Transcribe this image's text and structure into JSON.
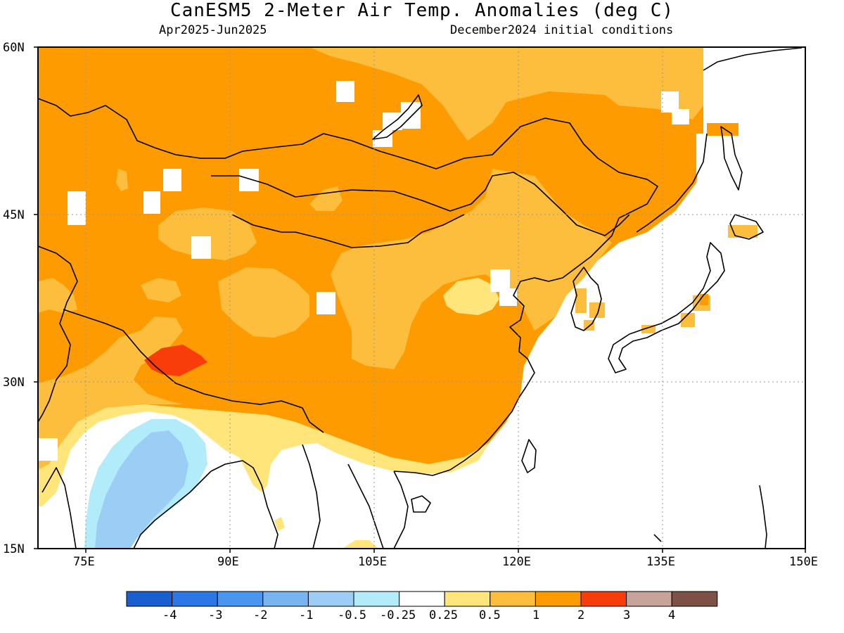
{
  "header": {
    "title": "CanESM5 2-Meter Air Temp. Anomalies (deg C)",
    "period": "Apr2025-Jun2025",
    "init": "December2024 initial conditions"
  },
  "map": {
    "lon_range": [
      70,
      150
    ],
    "lat_range": [
      15,
      60
    ],
    "lat_labels": [
      "60N",
      "45N",
      "30N",
      "15N"
    ],
    "lon_labels": [
      "75E",
      "90E",
      "105E",
      "120E",
      "135E",
      "150E"
    ],
    "grid": "dotted"
  },
  "colorbar": {
    "labels": [
      "-4",
      "-3",
      "-2",
      "-1",
      "-0.5",
      "-0.25",
      "0.25",
      "0.5",
      "1",
      "2",
      "3",
      "4"
    ],
    "colors": [
      "#1a5fd0",
      "#2d76e6",
      "#4a95f0",
      "#78b4f0",
      "#9ccdf5",
      "#b2ecfa",
      "#ffffff",
      "#ffe57a",
      "#fdbd3d",
      "#fd9b00",
      "#f83d0a",
      "#c8a39a",
      "#7b5245"
    ]
  },
  "regions": {
    "dark_orange": "#fd9b00",
    "light_orange": "#fdbd3d",
    "yellow": "#ffe57a",
    "light_blue": "#b2ecfa",
    "mid_blue": "#9ccdf5",
    "red": "#f83d0a"
  }
}
